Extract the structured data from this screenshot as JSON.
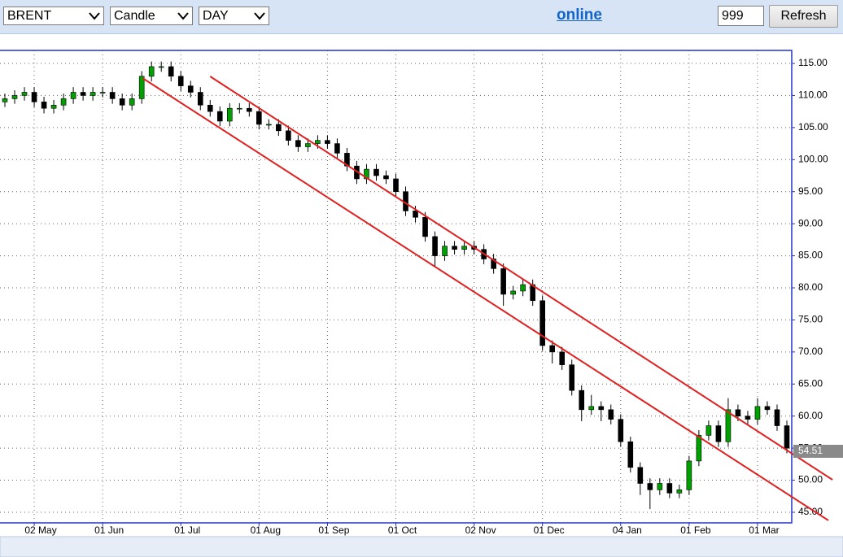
{
  "toolbar": {
    "symbol": "BRENT",
    "chart_style": "Candle",
    "period": "DAY",
    "status": "online",
    "bars": "999",
    "refresh": "Refresh"
  },
  "chart_data": {
    "type": "candlestick",
    "categories": [
      null,
      null,
      null,
      "02 May",
      null,
      null,
      null,
      null,
      null,
      null,
      "01 Jun",
      null,
      null,
      null,
      null,
      null,
      null,
      null,
      "01 Jul",
      null,
      null,
      null,
      null,
      null,
      null,
      null,
      "01 Aug",
      null,
      null,
      null,
      null,
      null,
      null,
      "01 Sep",
      null,
      null,
      null,
      null,
      null,
      null,
      "01 Oct",
      null,
      null,
      null,
      null,
      null,
      null,
      null,
      "02 Nov",
      null,
      null,
      null,
      null,
      null,
      null,
      "01 Dec",
      null,
      null,
      null,
      null,
      null,
      null,
      null,
      "04 Jan",
      null,
      null,
      null,
      null,
      null,
      null,
      "01 Feb",
      null,
      null,
      null,
      null,
      null,
      null,
      "01 Mar",
      null,
      null,
      null
    ],
    "open": [
      109,
      109.5,
      110,
      110.5,
      109,
      108,
      108.5,
      109.5,
      110.5,
      110,
      110.5,
      110.5,
      109.5,
      108.5,
      109.5,
      113,
      114.5,
      114.5,
      113,
      111.5,
      110.5,
      108.5,
      107.5,
      106,
      108,
      108,
      107.5,
      105.5,
      105.5,
      104.5,
      103,
      102,
      102.5,
      103,
      102.5,
      101,
      99,
      97,
      98.5,
      97.5,
      97,
      95,
      92,
      91,
      88,
      85,
      86.5,
      86,
      86.5,
      86,
      84.5,
      83,
      79,
      79.5,
      80.5,
      78,
      71,
      70,
      68,
      64,
      61,
      61.5,
      61,
      59.5,
      56,
      52,
      49.5,
      48.5,
      49.5,
      48,
      48.5,
      53,
      57,
      58.5,
      56,
      61,
      60,
      59.5,
      61.5,
      61,
      58.5
    ],
    "high": [
      110.3,
      110.8,
      111.3,
      111.3,
      109.8,
      109.3,
      110.3,
      111.3,
      111.3,
      111.3,
      111.3,
      111.3,
      110.3,
      110.3,
      113.8,
      115.3,
      115.3,
      115.3,
      113.8,
      112.3,
      111.3,
      109.3,
      108.3,
      108.8,
      108.8,
      108.8,
      108.3,
      106.3,
      106.3,
      105.3,
      103.8,
      103.3,
      103.8,
      103.8,
      103.3,
      101.8,
      99.8,
      99.3,
      99.3,
      98.3,
      97.8,
      95.8,
      92.8,
      91.8,
      88.8,
      87.3,
      87.3,
      87.3,
      87.3,
      86.8,
      85.3,
      83.8,
      80.3,
      81.3,
      81.3,
      78.8,
      71.8,
      70.8,
      68.8,
      64.8,
      63.3,
      62.3,
      61.8,
      60.3,
      56.8,
      52.8,
      50.3,
      50.3,
      50.3,
      49.3,
      53.8,
      57.8,
      59.3,
      59.3,
      62.8,
      61.8,
      60.8,
      62.8,
      62.3,
      61.8,
      59.3
    ],
    "low": [
      108.2,
      108.7,
      109.2,
      108.2,
      107.2,
      107.2,
      107.7,
      108.7,
      109.2,
      109.2,
      109.7,
      108.7,
      107.7,
      107.7,
      108.7,
      112.2,
      113.7,
      112.2,
      110.7,
      109.7,
      107.7,
      106.7,
      105.2,
      105.2,
      107.2,
      106.7,
      104.7,
      104.7,
      103.7,
      102.2,
      101.2,
      101.2,
      101.7,
      101.7,
      100.2,
      98.2,
      96.2,
      96.2,
      96.7,
      96.2,
      94.2,
      91.2,
      90.2,
      87.2,
      83.2,
      84.2,
      85.2,
      85.2,
      85.2,
      83.7,
      82.2,
      77.2,
      78.2,
      78.7,
      77.2,
      70.2,
      68.2,
      67.2,
      63.2,
      59.2,
      60.2,
      59.2,
      58.7,
      55.2,
      51.2,
      47.7,
      45.5,
      47.7,
      47.2,
      47.2,
      47.7,
      52.2,
      56.2,
      55.2,
      55.2,
      59.2,
      58.7,
      58.7,
      60.2,
      57.7,
      54.2
    ],
    "close": [
      109.5,
      110,
      110.5,
      109,
      108,
      108.5,
      109.5,
      110.5,
      110,
      110.5,
      110.5,
      109.5,
      108.5,
      109.5,
      113,
      114.5,
      114.5,
      113,
      111.5,
      110.5,
      108.5,
      107.5,
      106,
      108,
      108,
      107.5,
      105.5,
      105.5,
      104.5,
      103,
      102,
      102.5,
      103,
      102.5,
      101,
      99,
      97,
      98.5,
      97.5,
      97,
      95,
      92,
      91,
      88,
      85,
      86.5,
      86,
      86.5,
      86,
      84.5,
      83,
      79,
      79.5,
      80.5,
      78,
      71,
      70,
      68,
      64,
      61,
      61.5,
      61,
      59.5,
      56,
      52,
      49.5,
      48.5,
      49.5,
      48,
      48.5,
      53,
      57,
      58.5,
      56,
      61,
      60,
      59.5,
      61.5,
      61,
      58.5,
      55
    ],
    "up_color": "#00a000",
    "down_color": "#000000",
    "frame_color": "#2233cc",
    "ylim": [
      43.35,
      117.03
    ],
    "yticks": [
      {
        "value": 45,
        "label": "45.00"
      },
      {
        "value": 50,
        "label": "50.00"
      },
      {
        "value": 55,
        "label": "55.00"
      },
      {
        "value": 60,
        "label": "60.00"
      },
      {
        "value": 65,
        "label": "65.00"
      },
      {
        "value": 70,
        "label": "70.00"
      },
      {
        "value": 75,
        "label": "75.00"
      },
      {
        "value": 80,
        "label": "80.00"
      },
      {
        "value": 85,
        "label": "85.00"
      },
      {
        "value": 90,
        "label": "90.00"
      },
      {
        "value": 95,
        "label": "95.00"
      },
      {
        "value": 100,
        "label": "100.00"
      },
      {
        "value": 105,
        "label": "105.00"
      },
      {
        "value": 110,
        "label": "110.00"
      },
      {
        "value": 115,
        "label": "115.00"
      }
    ],
    "grid": true,
    "trendlines": [
      {
        "x": [
          21,
          84.67
        ],
        "y": [
          112.97,
          50.07
        ],
        "color": "#e02020"
      },
      {
        "x": [
          14.08,
          84.25
        ],
        "y": [
          112.72,
          43.73
        ],
        "color": "#e02020"
      }
    ],
    "last_price": 54.51
  }
}
